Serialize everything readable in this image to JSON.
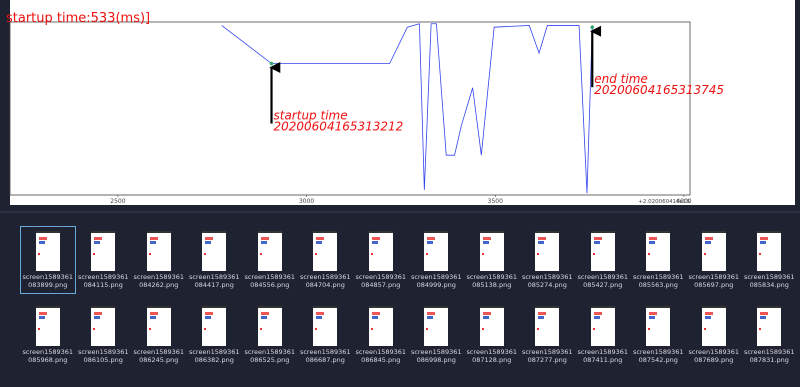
{
  "chart_data": {
    "type": "line",
    "title": "startup time:533(ms)]",
    "x": [
      2775,
      2907,
      3220,
      3267,
      3299,
      3312,
      3330,
      3344,
      3370,
      3392,
      3410,
      3440,
      3463,
      3497,
      3590,
      3616,
      3638,
      3722,
      3743,
      3757
    ],
    "series": [
      {
        "color": "#3344ee",
        "values": [
          98,
          76,
          76,
          97,
          99,
          3,
          99,
          99,
          23,
          23,
          40,
          62,
          23,
          97,
          98,
          82,
          98,
          98,
          1,
          97
        ]
      }
    ],
    "xlim": [
      2214,
      4016
    ],
    "ylim": [
      0,
      100
    ],
    "xticks": [
      2500,
      3000,
      3500,
      4000
    ],
    "x_offset_label": "+2.020060416e16",
    "annotations": [
      {
        "lines": [
          "startup time",
          "20200604165313212"
        ],
        "x": 2907,
        "y": 76,
        "color": "#ee1111",
        "marker_color": "#33aa66"
      },
      {
        "lines": [
          "end time",
          "20200604165313745"
        ],
        "x": 3757,
        "y": 97,
        "color": "#ee1111",
        "marker_color": "#33aa66"
      }
    ]
  },
  "files": [
    {
      "name": [
        "screen1589361",
        "083899.png"
      ],
      "selected": true
    },
    {
      "name": [
        "screen1589361",
        "084115.png"
      ]
    },
    {
      "name": [
        "screen1589361",
        "084262.png"
      ]
    },
    {
      "name": [
        "screen1589361",
        "084417.png"
      ]
    },
    {
      "name": [
        "screen1589361",
        "084556.png"
      ]
    },
    {
      "name": [
        "screen1589361",
        "084704.png"
      ]
    },
    {
      "name": [
        "screen1589361",
        "084857.png"
      ]
    },
    {
      "name": [
        "screen1589361",
        "084999.png"
      ]
    },
    {
      "name": [
        "screen1589361",
        "085138.png"
      ]
    },
    {
      "name": [
        "screen1589361",
        "085274.png"
      ]
    },
    {
      "name": [
        "screen1589361",
        "085427.png"
      ]
    },
    {
      "name": [
        "screen1589361",
        "085563.png"
      ]
    },
    {
      "name": [
        "screen1589361",
        "085697.png"
      ]
    },
    {
      "name": [
        "screen1589361",
        "085834.png"
      ]
    },
    {
      "name": [
        "screen1589361",
        "085968.png"
      ]
    },
    {
      "name": [
        "screen1589361",
        "086105.png"
      ]
    },
    {
      "name": [
        "screen1589361",
        "086245.png"
      ]
    },
    {
      "name": [
        "screen1589361",
        "086382.png"
      ]
    },
    {
      "name": [
        "screen1589361",
        "086525.png"
      ]
    },
    {
      "name": [
        "screen1589361",
        "086687.png"
      ]
    },
    {
      "name": [
        "screen1589361",
        "086845.png"
      ]
    },
    {
      "name": [
        "screen1589361",
        "086998.png"
      ]
    },
    {
      "name": [
        "screen1589361",
        "087128.png"
      ]
    },
    {
      "name": [
        "screen1589361",
        "087277.png"
      ]
    },
    {
      "name": [
        "screen1589361",
        "087411.png"
      ]
    },
    {
      "name": [
        "screen1589361",
        "087542.png"
      ]
    },
    {
      "name": [
        "screen1589361",
        "087689.png"
      ]
    },
    {
      "name": [
        "screen1589361",
        "087831.png"
      ]
    }
  ]
}
